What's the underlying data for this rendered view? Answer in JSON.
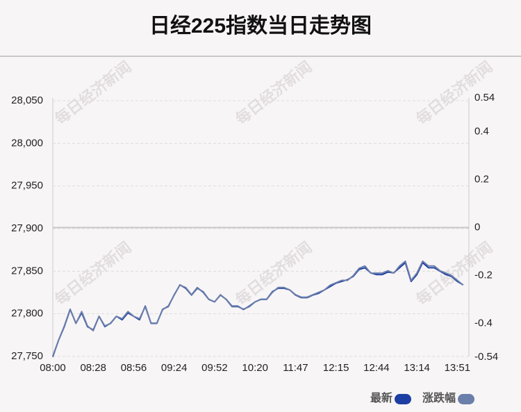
{
  "chart_data": {
    "type": "line",
    "title": "日经225指数当日走势图",
    "watermark": "每日经济新闻",
    "x": [
      "08:00",
      null,
      null,
      null,
      null,
      null,
      null,
      "08:28",
      null,
      null,
      null,
      null,
      null,
      null,
      "08:56",
      null,
      null,
      null,
      null,
      null,
      null,
      "09:24",
      null,
      null,
      null,
      null,
      null,
      null,
      "09:52",
      null,
      null,
      null,
      null,
      null,
      null,
      "10:20",
      null,
      null,
      null,
      null,
      null,
      null,
      "11:47",
      null,
      null,
      null,
      null,
      null,
      null,
      "12:15",
      null,
      null,
      null,
      null,
      null,
      null,
      "12:44",
      null,
      null,
      null,
      null,
      null,
      null,
      "13:14",
      null,
      null,
      null,
      null,
      null,
      null,
      "13:51",
      null
    ],
    "series": [
      {
        "name": "最新",
        "color": "#1d3fa3",
        "values": [
          27750,
          27769,
          27785,
          27805,
          27789,
          27801,
          27785,
          27781,
          27797,
          27785,
          27789,
          27797,
          27793,
          27801,
          27797,
          27793,
          27809,
          27789,
          27789,
          27805,
          27809,
          27822,
          27834,
          27830,
          27822,
          27830,
          27826,
          27817,
          27814,
          27822,
          27817,
          27809,
          27809,
          27805,
          27809,
          27814,
          27817,
          27817,
          27826,
          27830,
          27830,
          27828,
          27822,
          27819,
          27819,
          27822,
          27824,
          27828,
          27832,
          27836,
          27838,
          27840,
          27844,
          27852,
          27854,
          27848,
          27846,
          27846,
          27849,
          27848,
          27854,
          27860,
          27838,
          27846,
          27860,
          27854,
          27854,
          27850,
          27846,
          27844,
          27838,
          27834
        ]
      },
      {
        "name": "涨跌幅",
        "color": "#6b7fab",
        "axis": "y2",
        "values": [
          -0.54,
          -0.47,
          -0.41,
          -0.34,
          -0.4,
          -0.35,
          -0.41,
          -0.43,
          -0.37,
          -0.41,
          -0.4,
          -0.37,
          -0.38,
          -0.35,
          -0.37,
          -0.38,
          -0.33,
          -0.4,
          -0.4,
          -0.34,
          -0.33,
          -0.28,
          -0.24,
          -0.25,
          -0.28,
          -0.25,
          -0.27,
          -0.3,
          -0.31,
          -0.28,
          -0.3,
          -0.33,
          -0.33,
          -0.34,
          -0.33,
          -0.31,
          -0.3,
          -0.3,
          -0.27,
          -0.25,
          -0.25,
          -0.26,
          -0.28,
          -0.29,
          -0.29,
          -0.28,
          -0.27,
          -0.26,
          -0.24,
          -0.23,
          -0.22,
          -0.22,
          -0.2,
          -0.17,
          -0.16,
          -0.19,
          -0.19,
          -0.19,
          -0.18,
          -0.19,
          -0.16,
          -0.14,
          -0.22,
          -0.19,
          -0.14,
          -0.16,
          -0.16,
          -0.18,
          -0.19,
          -0.2,
          -0.22,
          -0.24
        ]
      }
    ],
    "ylim": [
      27750,
      28050
    ],
    "yticks": [
      {
        "value": 27750,
        "label": "27,750"
      },
      {
        "value": 27800,
        "label": "27,800"
      },
      {
        "value": 27850,
        "label": "27,850"
      },
      {
        "value": 27900,
        "label": "27,900"
      },
      {
        "value": 27950,
        "label": "27,950"
      },
      {
        "value": 28000,
        "label": "28,000"
      },
      {
        "value": 28050,
        "label": "28,050"
      }
    ],
    "y2lim": [
      -0.54,
      0.54
    ],
    "y2ticks": [
      -0.54,
      -0.4,
      -0.2,
      0,
      0.2,
      0.4,
      0.54
    ],
    "grid": true,
    "legend": "bottom-right"
  }
}
